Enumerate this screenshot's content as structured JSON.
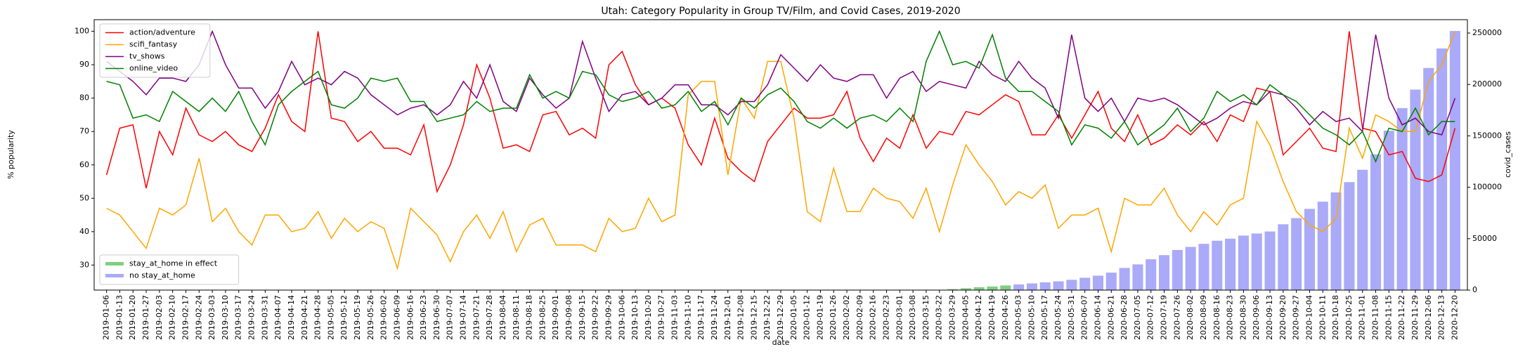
{
  "chart_data": {
    "type": "line",
    "title": "Utah: Category Popularity in Group TV/Film, and Covid Cases, 2019-2020",
    "x_label": "date",
    "y_label": "% popularity",
    "y2_label": "covid_cases",
    "categories": [
      "2019-01-06",
      "2019-01-13",
      "2019-01-20",
      "2019-01-27",
      "2019-02-03",
      "2019-02-10",
      "2019-02-17",
      "2019-02-24",
      "2019-03-03",
      "2019-03-10",
      "2019-03-17",
      "2019-03-24",
      "2019-03-31",
      "2019-04-07",
      "2019-04-14",
      "2019-04-21",
      "2019-04-28",
      "2019-05-05",
      "2019-05-12",
      "2019-05-19",
      "2019-05-26",
      "2019-06-02",
      "2019-06-09",
      "2019-06-16",
      "2019-06-23",
      "2019-06-30",
      "2019-07-07",
      "2019-07-14",
      "2019-07-21",
      "2019-07-28",
      "2019-08-04",
      "2019-08-11",
      "2019-08-18",
      "2019-08-25",
      "2019-09-01",
      "2019-09-08",
      "2019-09-15",
      "2019-09-22",
      "2019-09-29",
      "2019-10-06",
      "2019-10-13",
      "2019-10-20",
      "2019-10-27",
      "2019-11-03",
      "2019-11-10",
      "2019-11-17",
      "2019-11-24",
      "2019-12-01",
      "2019-12-08",
      "2019-12-15",
      "2019-12-22",
      "2019-12-29",
      "2020-01-05",
      "2020-01-12",
      "2020-01-19",
      "2020-01-26",
      "2020-02-02",
      "2020-02-09",
      "2020-02-16",
      "2020-02-23",
      "2020-03-01",
      "2020-03-08",
      "2020-03-15",
      "2020-03-22",
      "2020-03-29",
      "2020-04-05",
      "2020-04-12",
      "2020-04-19",
      "2020-04-26",
      "2020-05-03",
      "2020-05-10",
      "2020-05-17",
      "2020-05-24",
      "2020-05-31",
      "2020-06-07",
      "2020-06-14",
      "2020-06-21",
      "2020-06-28",
      "2020-07-05",
      "2020-07-12",
      "2020-07-19",
      "2020-07-26",
      "2020-08-02",
      "2020-08-09",
      "2020-08-16",
      "2020-08-23",
      "2020-08-30",
      "2020-09-06",
      "2020-09-13",
      "2020-09-20",
      "2020-09-27",
      "2020-10-04",
      "2020-10-11",
      "2020-10-18",
      "2020-10-25",
      "2020-11-01",
      "2020-11-08",
      "2020-11-15",
      "2020-11-22",
      "2020-11-29",
      "2020-12-06",
      "2020-12-13",
      "2020-12-20"
    ],
    "series": [
      {
        "name": "action/adventure",
        "color": "#ff0000",
        "values": [
          57,
          71,
          72,
          53,
          70,
          63,
          77,
          69,
          67,
          70,
          66,
          64,
          71,
          81,
          73,
          70,
          100,
          74,
          73,
          67,
          70,
          65,
          65,
          63,
          72,
          52,
          60,
          72,
          90,
          80,
          65,
          66,
          64,
          75,
          76,
          69,
          71,
          68,
          90,
          94,
          84,
          78,
          80,
          77,
          66,
          60,
          74,
          62,
          58,
          55,
          67,
          72,
          77,
          74,
          74,
          75,
          82,
          68,
          61,
          68,
          65,
          75,
          65,
          70,
          69,
          76,
          75,
          78,
          81,
          79,
          69,
          69,
          75,
          68,
          75,
          82,
          71,
          67,
          75,
          66,
          68,
          72,
          69,
          73,
          67,
          75,
          73,
          83,
          82,
          63,
          67,
          71,
          65,
          64,
          100,
          71,
          70,
          63,
          64,
          56,
          55,
          57,
          71
        ]
      },
      {
        "name": "scifi_fantasy",
        "color": "#ffa500",
        "values": [
          47,
          45,
          40,
          35,
          47,
          45,
          48,
          62,
          43,
          47,
          40,
          36,
          45,
          45,
          40,
          41,
          46,
          38,
          44,
          40,
          43,
          41,
          29,
          47,
          43,
          39,
          31,
          40,
          45,
          38,
          46,
          34,
          42,
          44,
          36,
          36,
          36,
          34,
          44,
          40,
          41,
          50,
          43,
          45,
          81,
          85,
          85,
          57,
          80,
          74,
          91,
          91,
          74,
          46,
          43,
          59,
          46,
          46,
          53,
          50,
          49,
          44,
          53,
          40,
          54,
          66,
          60,
          55,
          48,
          52,
          50,
          54,
          41,
          45,
          45,
          47,
          34,
          50,
          48,
          48,
          53,
          45,
          40,
          46,
          42,
          48,
          50,
          73,
          66,
          55,
          46,
          42,
          40,
          44,
          71,
          62,
          75,
          73,
          70,
          70,
          85,
          90,
          100
        ]
      },
      {
        "name": "tv_shows",
        "color": "#800080",
        "values": [
          91,
          88,
          85,
          81,
          86,
          86,
          85,
          90,
          100,
          90,
          83,
          83,
          77,
          82,
          91,
          84,
          86,
          84,
          88,
          86,
          81,
          78,
          75,
          77,
          78,
          75,
          78,
          85,
          80,
          90,
          79,
          76,
          86,
          81,
          77,
          80,
          97,
          86,
          76,
          81,
          82,
          78,
          80,
          84,
          84,
          78,
          78,
          75,
          79,
          79,
          84,
          93,
          89,
          85,
          90,
          86,
          85,
          87,
          87,
          80,
          86,
          88,
          82,
          85,
          84,
          83,
          91,
          87,
          85,
          91,
          86,
          83,
          74,
          99,
          80,
          76,
          80,
          73,
          80,
          79,
          80,
          78,
          75,
          72,
          74,
          77,
          79,
          78,
          82,
          81,
          77,
          72,
          76,
          73,
          74,
          70,
          99,
          80,
          72,
          74,
          70,
          69,
          80
        ]
      },
      {
        "name": "online_video",
        "color": "#008000",
        "values": [
          85,
          84,
          74,
          75,
          73,
          82,
          79,
          76,
          80,
          76,
          82,
          73,
          66,
          78,
          82,
          85,
          88,
          78,
          77,
          80,
          86,
          85,
          86,
          79,
          79,
          73,
          74,
          75,
          79,
          76,
          77,
          77,
          87,
          80,
          82,
          80,
          88,
          87,
          81,
          79,
          80,
          82,
          77,
          78,
          82,
          76,
          79,
          72,
          80,
          77,
          81,
          83,
          79,
          73,
          71,
          74,
          71,
          74,
          75,
          73,
          77,
          73,
          91,
          100,
          90,
          91,
          89,
          99,
          86,
          82,
          82,
          79,
          76,
          66,
          72,
          71,
          68,
          73,
          66,
          69,
          72,
          77,
          70,
          74,
          82,
          79,
          81,
          78,
          84,
          81,
          79,
          75,
          71,
          69,
          66,
          70,
          61,
          71,
          70,
          77,
          69,
          73,
          73
        ]
      },
      {
        "name": "stay_at_home in effect",
        "type": "bar",
        "axis": "y2",
        "color": "#7fcf7f",
        "values": [
          null,
          null,
          null,
          null,
          null,
          null,
          null,
          null,
          null,
          null,
          null,
          null,
          null,
          null,
          null,
          null,
          null,
          null,
          null,
          null,
          null,
          null,
          null,
          null,
          null,
          null,
          null,
          null,
          null,
          null,
          null,
          null,
          null,
          null,
          null,
          null,
          null,
          null,
          null,
          null,
          null,
          null,
          null,
          null,
          null,
          null,
          null,
          null,
          null,
          null,
          null,
          null,
          null,
          null,
          null,
          null,
          null,
          null,
          null,
          null,
          null,
          null,
          null,
          null,
          900,
          1800,
          2800,
          3500,
          4500,
          null,
          null,
          null,
          null,
          null,
          null,
          null,
          null,
          null,
          null,
          null,
          null,
          null,
          null,
          null,
          null,
          null,
          null,
          null,
          null,
          null,
          null,
          null,
          null,
          null,
          null,
          null,
          null,
          null,
          null,
          null,
          null,
          null,
          null
        ]
      },
      {
        "name": "no stay_at_home",
        "type": "bar",
        "axis": "y2",
        "color": "#aaaaf8",
        "values": [
          null,
          null,
          null,
          null,
          null,
          null,
          null,
          null,
          null,
          null,
          null,
          null,
          null,
          null,
          null,
          null,
          null,
          null,
          null,
          null,
          null,
          null,
          null,
          null,
          null,
          null,
          null,
          null,
          null,
          null,
          null,
          null,
          null,
          null,
          null,
          null,
          null,
          null,
          null,
          null,
          null,
          null,
          null,
          null,
          null,
          null,
          null,
          null,
          null,
          null,
          null,
          null,
          null,
          null,
          null,
          null,
          null,
          null,
          null,
          null,
          null,
          null,
          null,
          null,
          null,
          null,
          null,
          null,
          null,
          5500,
          6500,
          7500,
          8500,
          10000,
          12000,
          14000,
          17000,
          21500,
          25000,
          30000,
          34000,
          39000,
          42000,
          45000,
          48000,
          50000,
          53000,
          55000,
          57000,
          64000,
          70000,
          79000,
          86000,
          95000,
          105000,
          117000,
          132000,
          155000,
          177000,
          195000,
          216000,
          235000,
          252000
        ]
      }
    ],
    "ylim": [
      22.5,
      103.5
    ],
    "yticks": [
      30,
      40,
      50,
      60,
      70,
      80,
      90,
      100
    ],
    "y2lim": [
      0,
      263000
    ],
    "y2ticks": [
      0,
      50000,
      100000,
      150000,
      200000,
      250000
    ],
    "legend": "upper left",
    "bar_legend": "lower left"
  }
}
